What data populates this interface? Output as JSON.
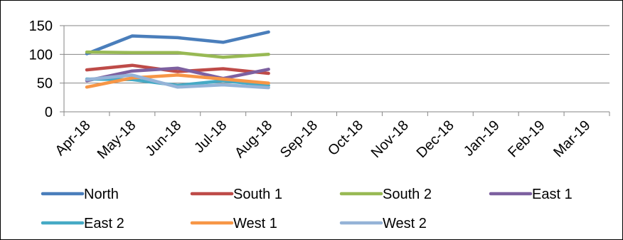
{
  "chart_data": {
    "type": "line",
    "title": "",
    "xlabel": "",
    "ylabel": "",
    "categories": [
      "Apr-18",
      "May-18",
      "Jun-18",
      "Jul-18",
      "Aug-18",
      "Sep-18",
      "Oct-18",
      "Nov-18",
      "Dec-18",
      "Jan-19",
      "Feb-19",
      "Mar-19"
    ],
    "ylim": [
      0,
      150
    ],
    "yticks": [
      0,
      50,
      100,
      150
    ],
    "grid": "horizontal",
    "legend": "bottom",
    "series": [
      {
        "name": "North",
        "color": "#4A7EBB",
        "values": [
          101,
          132,
          129,
          121,
          139,
          null,
          null,
          null,
          null,
          null,
          null,
          null
        ]
      },
      {
        "name": "South 1",
        "color": "#BE4B48",
        "values": [
          73,
          81,
          70,
          75,
          67,
          null,
          null,
          null,
          null,
          null,
          null,
          null
        ]
      },
      {
        "name": "South 2",
        "color": "#98B954",
        "values": [
          104,
          103,
          103,
          95,
          100,
          null,
          null,
          null,
          null,
          null,
          null,
          null
        ]
      },
      {
        "name": "East 1",
        "color": "#7D60A0",
        "values": [
          54,
          71,
          76,
          58,
          74,
          null,
          null,
          null,
          null,
          null,
          null,
          null
        ]
      },
      {
        "name": "East 2",
        "color": "#46AAC5",
        "values": [
          57,
          56,
          46,
          54,
          46,
          null,
          null,
          null,
          null,
          null,
          null,
          null
        ]
      },
      {
        "name": "West 1",
        "color": "#F79646",
        "values": [
          43,
          59,
          64,
          57,
          50,
          null,
          null,
          null,
          null,
          null,
          null,
          null
        ]
      },
      {
        "name": "West 2",
        "color": "#95B3D7",
        "values": [
          56,
          64,
          43,
          47,
          42,
          null,
          null,
          null,
          null,
          null,
          null,
          null
        ]
      }
    ]
  }
}
